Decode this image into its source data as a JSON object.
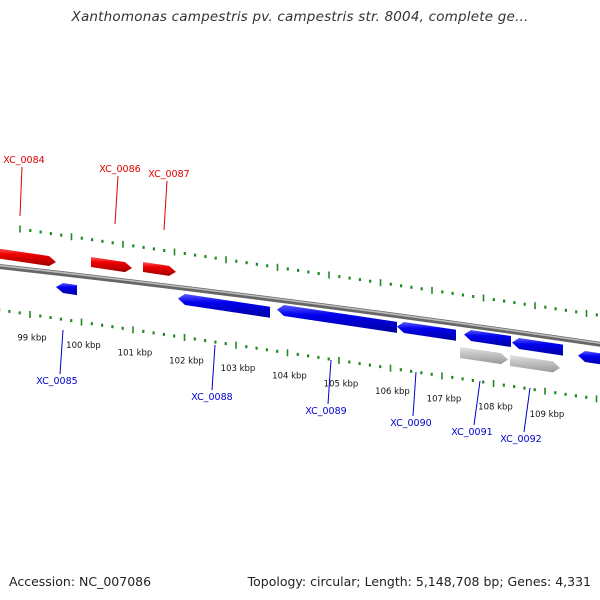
{
  "title": "Xanthomonas campestris pv. campestris str. 8004, complete ge...",
  "accession": "Accession: NC_007086",
  "topology": "Topology: circular; Length: 5,148,708 bp; Genes: 4,331",
  "colors": {
    "forward_gene": "#ee0000",
    "reverse_gene": "#0000ee",
    "other_feature": "#bbbbbb",
    "backbone": "#888888",
    "tick": "#228822",
    "forward_label": "#dd0000",
    "reverse_label": "#0000cc"
  },
  "kbp_labels": [
    "99 kbp",
    "100 kbp",
    "101 kbp",
    "102 kbp",
    "103 kbp",
    "104 kbp",
    "105 kbp",
    "106 kbp",
    "107 kbp",
    "108 kbp",
    "109 kbp"
  ],
  "forward_genes": [
    {
      "name": "XC_0084"
    },
    {
      "name": "XC_0086"
    },
    {
      "name": "XC_0087"
    }
  ],
  "reverse_genes": [
    {
      "name": "XC_0085"
    },
    {
      "name": "XC_0088"
    },
    {
      "name": "XC_0089"
    },
    {
      "name": "XC_0090"
    },
    {
      "name": "XC_0091"
    },
    {
      "name": "XC_0092"
    }
  ]
}
